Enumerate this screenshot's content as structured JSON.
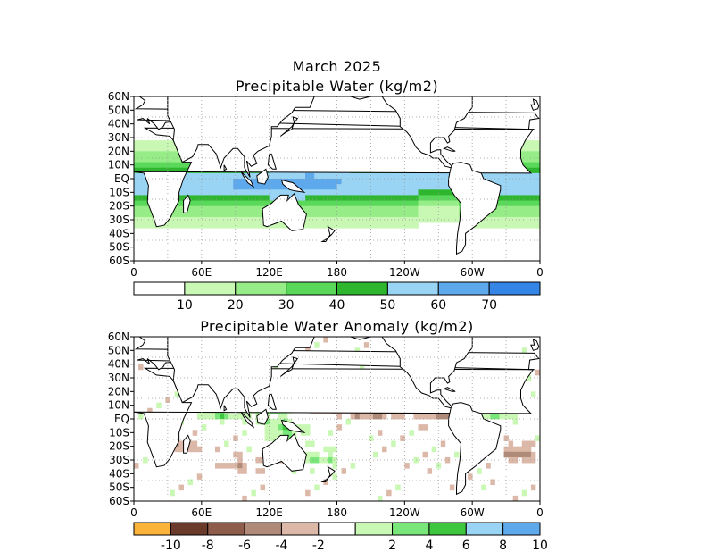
{
  "panels": [
    {
      "title_lines": [
        "March 2025",
        "Precipitable Water (kg/m2)"
      ],
      "lat_labels": [
        "60N",
        "50N",
        "40N",
        "30N",
        "20N",
        "10N",
        "EQ",
        "10S",
        "20S",
        "30S",
        "40S",
        "50S",
        "60S"
      ],
      "lon_labels": [
        "0",
        "60E",
        "120E",
        "180",
        "120W",
        "60W",
        "0"
      ],
      "colorbar": {
        "colors": [
          "#ffffff",
          "#c8f8b4",
          "#96ec86",
          "#5ad85a",
          "#2fb62f",
          "#9ad4f5",
          "#5ea8ec",
          "#3585e6"
        ],
        "labels": [
          "10",
          "20",
          "30",
          "40",
          "50",
          "60",
          "70"
        ]
      },
      "field": "precipitable-water"
    },
    {
      "title_lines": [
        "Precipitable Water Anomaly (kg/m2)"
      ],
      "lat_labels": [
        "60N",
        "50N",
        "40N",
        "30N",
        "20N",
        "10N",
        "EQ",
        "10S",
        "20S",
        "30S",
        "40S",
        "50S",
        "60S"
      ],
      "lon_labels": [
        "0",
        "60E",
        "120E",
        "180",
        "120W",
        "60W",
        "0"
      ],
      "colorbar": {
        "colors": [
          "#fbb33a",
          "#6a3a2a",
          "#8e5c4a",
          "#b08a78",
          "#dcb8a8",
          "#ffffff",
          "#c8f8b4",
          "#78e678",
          "#3fc63f",
          "#9ad4f5",
          "#5ea8ec"
        ],
        "labels": [
          "-10",
          "-8",
          "-6",
          "-4",
          "-2",
          "2",
          "4",
          "6",
          "8",
          "10"
        ]
      },
      "field": "precipitable-water-anomaly"
    }
  ],
  "colors": {
    "coastline": "#000000",
    "grid": "#999999"
  }
}
